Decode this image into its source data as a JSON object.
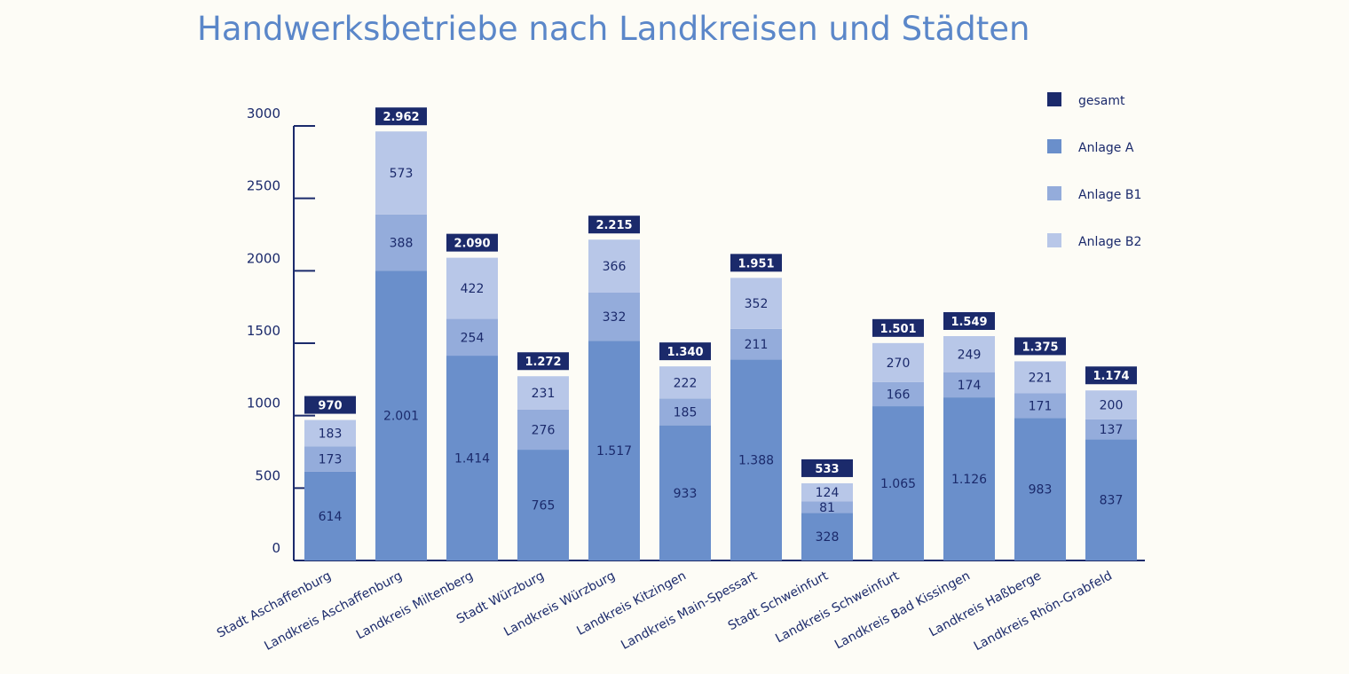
{
  "chart_data": {
    "type": "bar",
    "stacked": true,
    "title": "Handwerksbetriebe nach Landkreisen und Städten",
    "ylim": [
      0,
      3000
    ],
    "yticks": [
      0,
      500,
      1000,
      1500,
      2000,
      2500,
      3000
    ],
    "categories": [
      "Stadt Aschaffenburg",
      "Landkreis Aschaffenburg",
      "Landkreis Miltenberg",
      "Stadt Würzburg",
      "Landkreis Würzburg",
      "Landkreis Kitzingen",
      "Landkreis Main-Spessart",
      "Stadt Schweinfurt",
      "Landkreis Schweinfurt",
      "Landkreis Bad Kissingen",
      "Landkreis Haßberge",
      "Landkreis Rhön-Grabfeld"
    ],
    "series": [
      {
        "name": "Anlage A",
        "color": "#6a8fcb",
        "values": [
          614,
          2001,
          1414,
          765,
          1517,
          933,
          1388,
          328,
          1065,
          1126,
          983,
          837
        ],
        "labels": [
          "614",
          "2.001",
          "1.414",
          "765",
          "1.517",
          "933",
          "1.388",
          "328",
          "1.065",
          "1.126",
          "983",
          "837"
        ]
      },
      {
        "name": "Anlage B1",
        "color": "#94acdb",
        "values": [
          173,
          388,
          254,
          276,
          332,
          185,
          211,
          81,
          166,
          174,
          171,
          137
        ],
        "labels": [
          "173",
          "388",
          "254",
          "276",
          "332",
          "185",
          "211",
          "81",
          "166",
          "174",
          "171",
          "137"
        ]
      },
      {
        "name": "Anlage B2",
        "color": "#b8c7e8",
        "values": [
          183,
          573,
          422,
          231,
          366,
          222,
          352,
          124,
          270,
          249,
          221,
          200
        ],
        "labels": [
          "183",
          "573",
          "422",
          "231",
          "366",
          "222",
          "352",
          "124",
          "270",
          "249",
          "221",
          "200"
        ]
      }
    ],
    "totals": {
      "name": "gesamt",
      "color": "#1b2a6b",
      "values": [
        970,
        2962,
        2090,
        1272,
        2215,
        1340,
        1951,
        533,
        1501,
        1549,
        1375,
        1174
      ],
      "labels": [
        "970",
        "2.962",
        "2.090",
        "1.272",
        "2.215",
        "1.340",
        "1.951",
        "533",
        "1.501",
        "1.549",
        "1.375",
        "1.174"
      ]
    },
    "legend": [
      "gesamt",
      "Anlage A",
      "Anlage B1",
      "Anlage B2"
    ],
    "legend_position": "top-right"
  }
}
